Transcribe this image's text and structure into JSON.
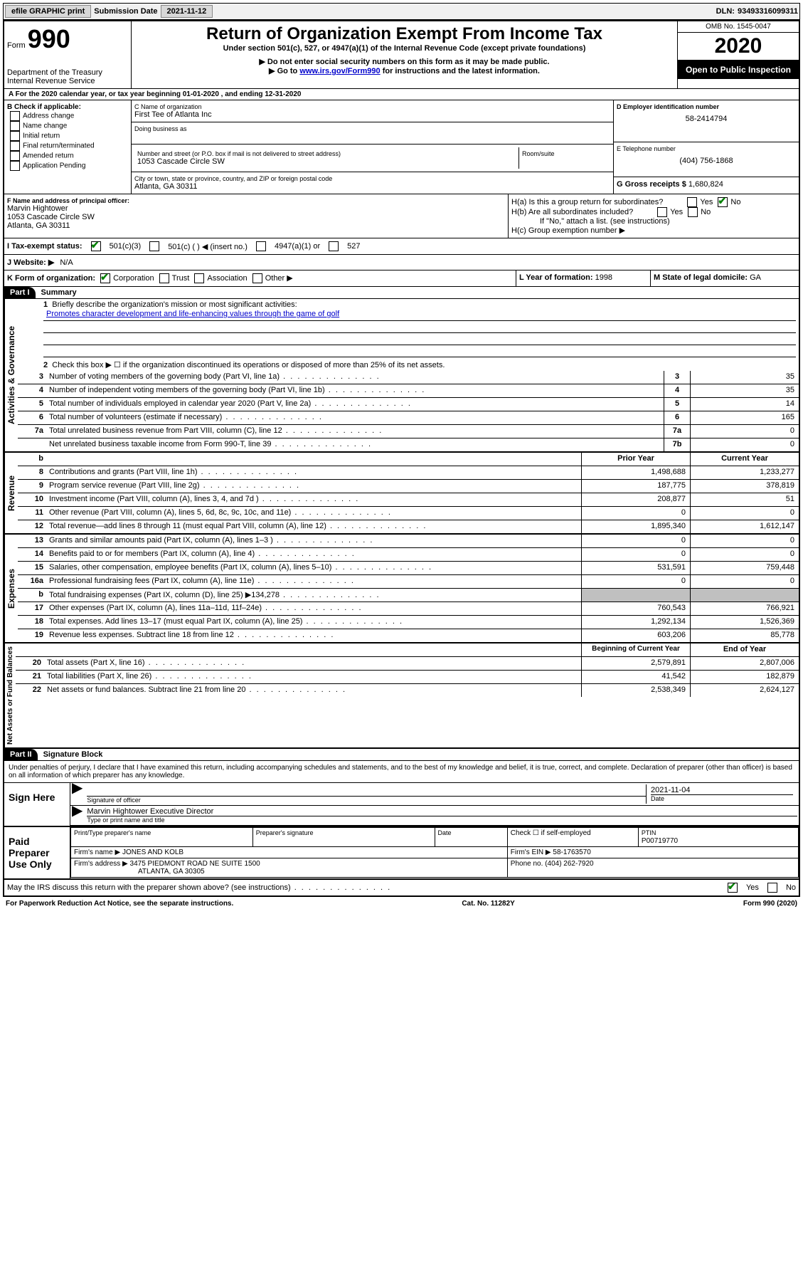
{
  "topbar": {
    "efile": "efile GRAPHIC print",
    "sub_lbl": "Submission Date",
    "sub_date": "2021-11-12",
    "dln_lbl": "DLN:",
    "dln": "93493316099311"
  },
  "header": {
    "form_word": "Form",
    "form_num": "990",
    "dept1": "Department of the Treasury",
    "dept2": "Internal Revenue Service",
    "title": "Return of Organization Exempt From Income Tax",
    "subtitle": "Under section 501(c), 527, or 4947(a)(1) of the Internal Revenue Code (except private foundations)",
    "note1": "▶ Do not enter social security numbers on this form as it may be made public.",
    "note2_a": "▶ Go to ",
    "note2_link": "www.irs.gov/Form990",
    "note2_b": " for instructions and the latest information.",
    "omb": "OMB No. 1545-0047",
    "year": "2020",
    "inspect": "Open to Public Inspection"
  },
  "rowA": "A For the 2020 calendar year, or tax year beginning 01-01-2020   , and ending 12-31-2020",
  "colB": {
    "title": "B Check if applicable:",
    "opts": [
      "Address change",
      "Name change",
      "Initial return",
      "Final return/terminated",
      "Amended return",
      "Application Pending"
    ]
  },
  "colC": {
    "name_lbl": "C Name of organization",
    "name": "First Tee of Atlanta Inc",
    "dba_lbl": "Doing business as",
    "street_lbl": "Number and street (or P.O. box if mail is not delivered to street address)",
    "street": "1053 Cascade Circle SW",
    "suite_lbl": "Room/suite",
    "city_lbl": "City or town, state or province, country, and ZIP or foreign postal code",
    "city": "Atlanta, GA  30311"
  },
  "colD": {
    "ein_lbl": "D Employer identification number",
    "ein": "58-2414794",
    "phone_lbl": "E Telephone number",
    "phone": "(404) 756-1868",
    "gross_lbl": "G Gross receipts $",
    "gross": "1,680,824"
  },
  "secF": {
    "lbl": "F  Name and address of principal officer:",
    "name": "Marvin Hightower",
    "addr1": "1053 Cascade Circle SW",
    "addr2": "Atlanta, GA  30311"
  },
  "secH": {
    "ha": "H(a)  Is this a group return for subordinates?",
    "hb": "H(b)  Are all subordinates included?",
    "hb_note": "If \"No,\" attach a list. (see instructions)",
    "hc": "H(c)  Group exemption number ▶"
  },
  "secI": {
    "lbl": "I   Tax-exempt status:",
    "o1": "501(c)(3)",
    "o2": "501(c) (  ) ◀ (insert no.)",
    "o3": "4947(a)(1) or",
    "o4": "527"
  },
  "secJ": {
    "lbl": "J   Website: ▶",
    "val": "N/A"
  },
  "secK": {
    "lbl": "K Form of organization:",
    "o1": "Corporation",
    "o2": "Trust",
    "o3": "Association",
    "o4": "Other ▶",
    "l_lbl": "L Year of formation:",
    "l_val": "1998",
    "m_lbl": "M State of legal domicile:",
    "m_val": "GA"
  },
  "part1": {
    "hdr": "Part I",
    "title": "Summary",
    "l1_lbl": "Briefly describe the organization's mission or most significant activities:",
    "l1_val": "Promotes character development and life-enhancing values through the game of golf",
    "l2": "Check this box ▶ ☐  if the organization discontinued its operations or disposed of more than 25% of its net assets.",
    "lines_a": [
      {
        "n": "3",
        "d": "Number of voting members of the governing body (Part VI, line 1a)",
        "b": "3",
        "v": "35"
      },
      {
        "n": "4",
        "d": "Number of independent voting members of the governing body (Part VI, line 1b)",
        "b": "4",
        "v": "35"
      },
      {
        "n": "5",
        "d": "Total number of individuals employed in calendar year 2020 (Part V, line 2a)",
        "b": "5",
        "v": "14"
      },
      {
        "n": "6",
        "d": "Total number of volunteers (estimate if necessary)",
        "b": "6",
        "v": "165"
      },
      {
        "n": "7a",
        "d": "Total unrelated business revenue from Part VIII, column (C), line 12",
        "b": "7a",
        "v": "0"
      },
      {
        "n": "",
        "d": "Net unrelated business taxable income from Form 990-T, line 39",
        "b": "7b",
        "v": "0"
      }
    ],
    "tab_gov": "Activities & Governance",
    "tab_rev": "Revenue",
    "tab_exp": "Expenses",
    "tab_net": "Net Assets or Fund Balances",
    "col_prior": "Prior Year",
    "col_curr": "Current Year",
    "col_beg": "Beginning of Current Year",
    "col_end": "End of Year",
    "rev": [
      {
        "n": "8",
        "d": "Contributions and grants (Part VIII, line 1h)",
        "p": "1,498,688",
        "c": "1,233,277"
      },
      {
        "n": "9",
        "d": "Program service revenue (Part VIII, line 2g)",
        "p": "187,775",
        "c": "378,819"
      },
      {
        "n": "10",
        "d": "Investment income (Part VIII, column (A), lines 3, 4, and 7d )",
        "p": "208,877",
        "c": "51"
      },
      {
        "n": "11",
        "d": "Other revenue (Part VIII, column (A), lines 5, 6d, 8c, 9c, 10c, and 11e)",
        "p": "0",
        "c": "0"
      },
      {
        "n": "12",
        "d": "Total revenue—add lines 8 through 11 (must equal Part VIII, column (A), line 12)",
        "p": "1,895,340",
        "c": "1,612,147"
      }
    ],
    "exp": [
      {
        "n": "13",
        "d": "Grants and similar amounts paid (Part IX, column (A), lines 1–3 )",
        "p": "0",
        "c": "0"
      },
      {
        "n": "14",
        "d": "Benefits paid to or for members (Part IX, column (A), line 4)",
        "p": "0",
        "c": "0"
      },
      {
        "n": "15",
        "d": "Salaries, other compensation, employee benefits (Part IX, column (A), lines 5–10)",
        "p": "531,591",
        "c": "759,448"
      },
      {
        "n": "16a",
        "d": "Professional fundraising fees (Part IX, column (A), line 11e)",
        "p": "0",
        "c": "0"
      },
      {
        "n": "b",
        "d": "Total fundraising expenses (Part IX, column (D), line 25) ▶134,278",
        "p": "",
        "c": "",
        "shade": true
      },
      {
        "n": "17",
        "d": "Other expenses (Part IX, column (A), lines 11a–11d, 11f–24e)",
        "p": "760,543",
        "c": "766,921"
      },
      {
        "n": "18",
        "d": "Total expenses. Add lines 13–17 (must equal Part IX, column (A), line 25)",
        "p": "1,292,134",
        "c": "1,526,369"
      },
      {
        "n": "19",
        "d": "Revenue less expenses. Subtract line 18 from line 12",
        "p": "603,206",
        "c": "85,778"
      }
    ],
    "net": [
      {
        "n": "20",
        "d": "Total assets (Part X, line 16)",
        "p": "2,579,891",
        "c": "2,807,006"
      },
      {
        "n": "21",
        "d": "Total liabilities (Part X, line 26)",
        "p": "41,542",
        "c": "182,879"
      },
      {
        "n": "22",
        "d": "Net assets or fund balances. Subtract line 21 from line 20",
        "p": "2,538,349",
        "c": "2,624,127"
      }
    ]
  },
  "part2": {
    "hdr": "Part II",
    "title": "Signature Block",
    "perjury": "Under penalties of perjury, I declare that I have examined this return, including accompanying schedules and statements, and to the best of my knowledge and belief, it is true, correct, and complete. Declaration of preparer (other than officer) is based on all information of which preparer has any knowledge.",
    "sign_here": "Sign Here",
    "sig_officer": "Signature of officer",
    "date_lbl": "Date",
    "date_val": "2021-11-04",
    "officer_name": "Marvin Hightower  Executive Director",
    "type_name": "Type or print name and title",
    "paid": "Paid Preparer Use Only",
    "prep_name_lbl": "Print/Type preparer's name",
    "prep_sig_lbl": "Preparer's signature",
    "self_emp": "Check ☐  if self-employed",
    "ptin_lbl": "PTIN",
    "ptin": "P00719770",
    "firm_name_lbl": "Firm's name    ▶",
    "firm_name": "JONES AND KOLB",
    "firm_ein_lbl": "Firm's EIN ▶",
    "firm_ein": "58-1763570",
    "firm_addr_lbl": "Firm's address ▶",
    "firm_addr1": "3475 PIEDMONT ROAD NE SUITE 1500",
    "firm_addr2": "ATLANTA, GA  30305",
    "firm_phone_lbl": "Phone no.",
    "firm_phone": "(404) 262-7920",
    "discuss": "May the IRS discuss this return with the preparer shown above? (see instructions)"
  },
  "footer": {
    "left": "For Paperwork Reduction Act Notice, see the separate instructions.",
    "mid": "Cat. No. 11282Y",
    "right": "Form 990 (2020)"
  }
}
